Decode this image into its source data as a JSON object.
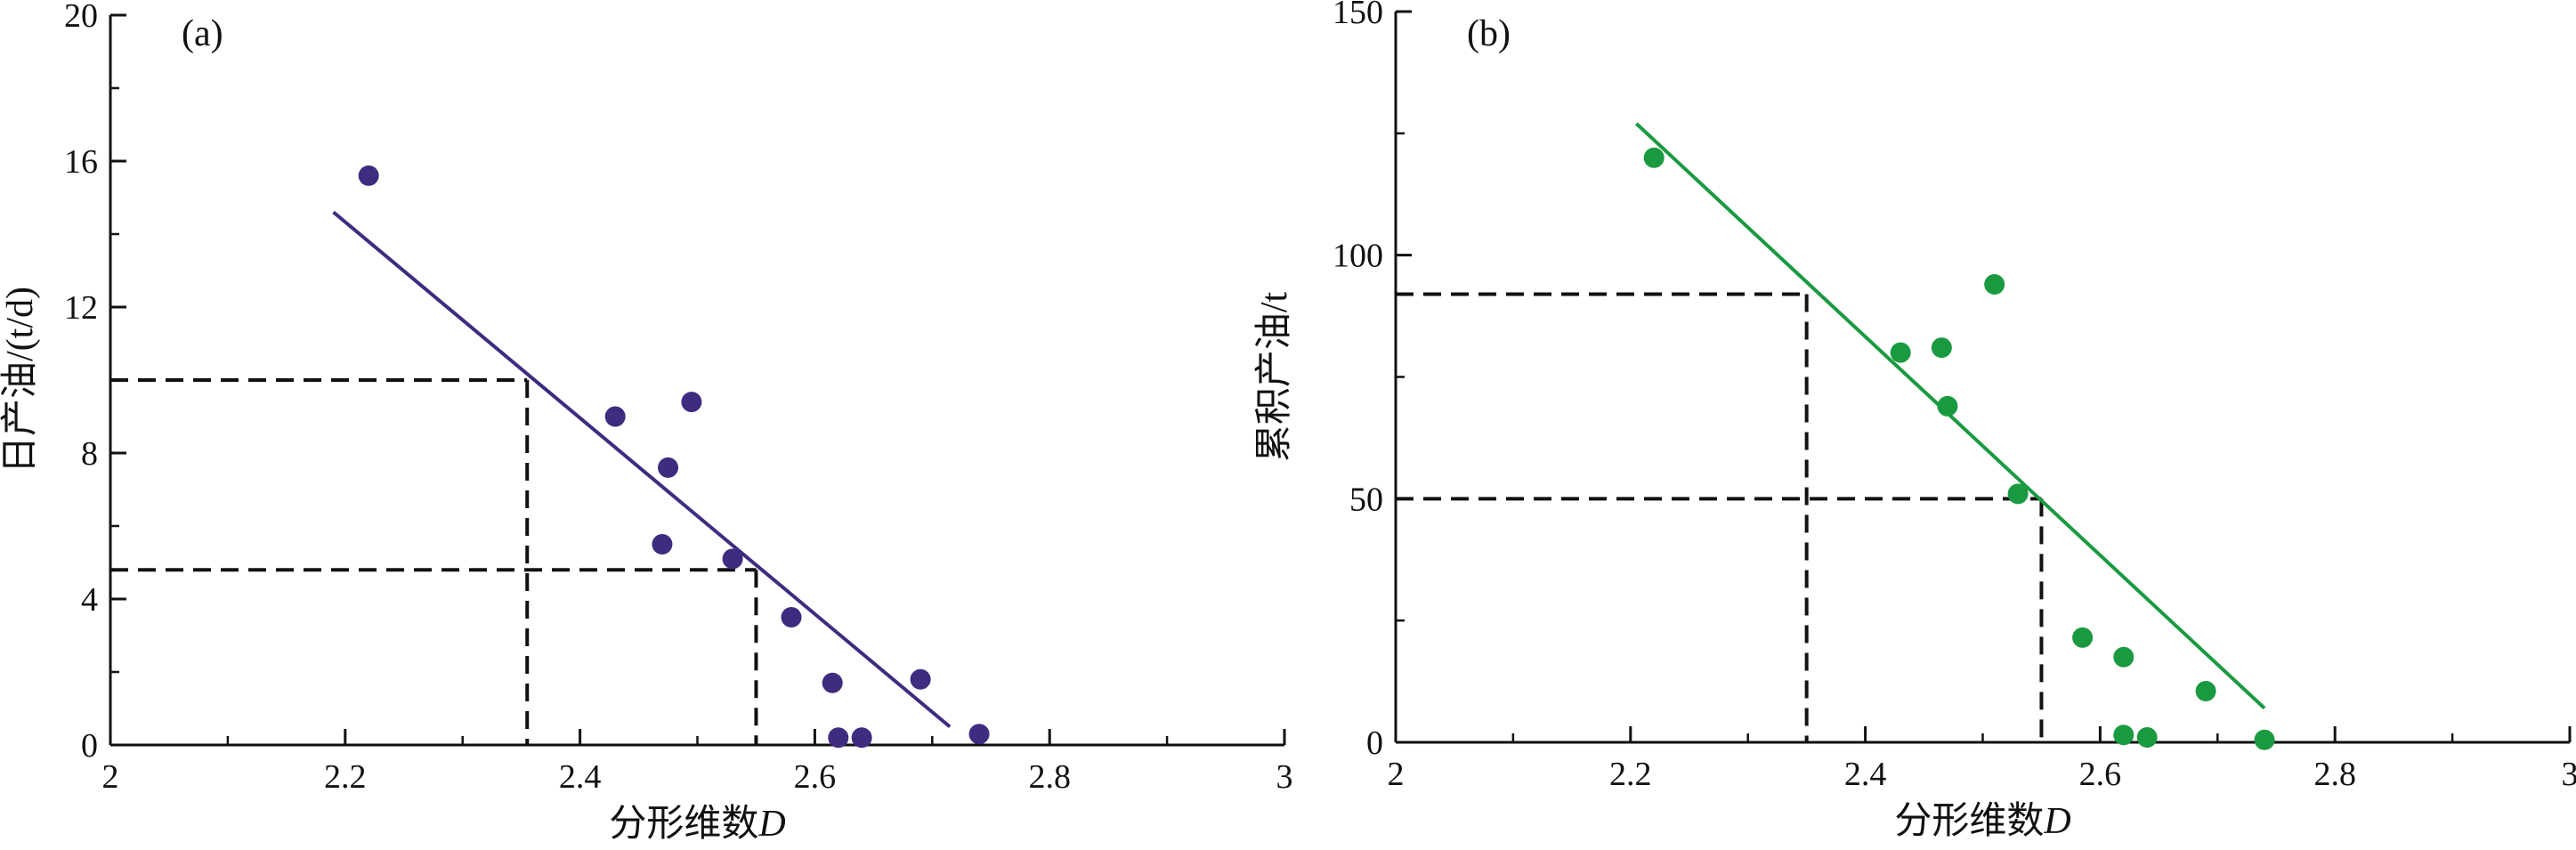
{
  "chart_data": [
    {
      "type": "scatter",
      "panel_label": "(a)",
      "xlabel": "分形维数",
      "xlabel_italic": "D",
      "ylabel": "日产油/(t/d)",
      "xlim": [
        2,
        3
      ],
      "ylim": [
        0,
        20
      ],
      "xticks": [
        "2",
        "2.2",
        "2.4",
        "2.6",
        "2.8",
        "3"
      ],
      "yticks": [
        "0",
        "4",
        "8",
        "12",
        "16",
        "20"
      ],
      "grid": false,
      "color": "#3f2b7f",
      "points": [
        {
          "x": 2.22,
          "y": 15.6
        },
        {
          "x": 2.43,
          "y": 9.0
        },
        {
          "x": 2.475,
          "y": 7.6
        },
        {
          "x": 2.495,
          "y": 9.4
        },
        {
          "x": 2.47,
          "y": 5.5
        },
        {
          "x": 2.53,
          "y": 5.1
        },
        {
          "x": 2.58,
          "y": 3.5
        },
        {
          "x": 2.615,
          "y": 1.7
        },
        {
          "x": 2.62,
          "y": 0.2
        },
        {
          "x": 2.64,
          "y": 0.2
        },
        {
          "x": 2.69,
          "y": 1.8
        },
        {
          "x": 2.74,
          "y": 0.3
        }
      ],
      "fit_line": {
        "x": [
          2.19,
          2.715
        ],
        "y": [
          14.6,
          0.5
        ]
      },
      "reference_lines": [
        {
          "x": 2.355,
          "y": 10.0
        },
        {
          "x": 2.55,
          "y": 4.8
        }
      ]
    },
    {
      "type": "scatter",
      "panel_label": "(b)",
      "xlabel": "分形维数",
      "xlabel_italic": "D",
      "ylabel": "累积产油/t",
      "xlim": [
        2,
        3
      ],
      "ylim": [
        0,
        150
      ],
      "xticks": [
        "2",
        "2.2",
        "2.4",
        "2.6",
        "2.8",
        "3"
      ],
      "yticks": [
        "0",
        "50",
        "100",
        "150"
      ],
      "grid": false,
      "color": "#1a9a40",
      "points": [
        {
          "x": 2.22,
          "y": 120
        },
        {
          "x": 2.43,
          "y": 80
        },
        {
          "x": 2.465,
          "y": 81
        },
        {
          "x": 2.47,
          "y": 69
        },
        {
          "x": 2.51,
          "y": 94
        },
        {
          "x": 2.53,
          "y": 51
        },
        {
          "x": 2.585,
          "y": 21.5
        },
        {
          "x": 2.62,
          "y": 17.5
        },
        {
          "x": 2.62,
          "y": 1.5
        },
        {
          "x": 2.64,
          "y": 1.0
        },
        {
          "x": 2.69,
          "y": 10.5
        },
        {
          "x": 2.74,
          "y": 0.5
        }
      ],
      "fit_line": {
        "x": [
          2.205,
          2.74
        ],
        "y": [
          127,
          7
        ]
      },
      "reference_lines": [
        {
          "x": 2.35,
          "y": 92
        },
        {
          "x": 2.55,
          "y": 50
        }
      ]
    }
  ]
}
